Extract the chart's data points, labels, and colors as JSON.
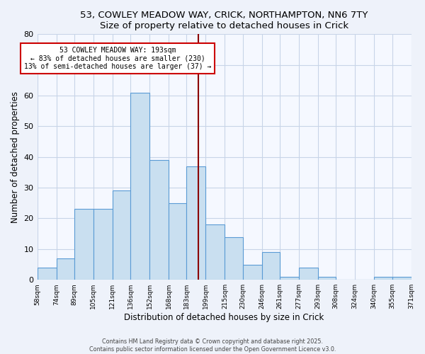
{
  "title": "53, COWLEY MEADOW WAY, CRICK, NORTHAMPTON, NN6 7TY",
  "subtitle": "Size of property relative to detached houses in Crick",
  "xlabel": "Distribution of detached houses by size in Crick",
  "ylabel": "Number of detached properties",
  "bar_edges": [
    58,
    74,
    89,
    105,
    121,
    136,
    152,
    168,
    183,
    199,
    215,
    230,
    246,
    261,
    277,
    293,
    308,
    324,
    340,
    355,
    371
  ],
  "bar_heights": [
    4,
    7,
    23,
    23,
    29,
    61,
    39,
    25,
    37,
    18,
    14,
    5,
    9,
    1,
    4,
    1,
    0,
    0,
    1,
    1
  ],
  "bar_color": "#c9dff0",
  "bar_edge_color": "#5b9bd5",
  "vline_x": 193,
  "vline_color": "#8b0000",
  "annotation_title": "53 COWLEY MEADOW WAY: 193sqm",
  "annotation_line1": "← 83% of detached houses are smaller (230)",
  "annotation_line2": "13% of semi-detached houses are larger (37) →",
  "annotation_box_edge_color": "#cc0000",
  "annotation_bg": "white",
  "ylim": [
    0,
    80
  ],
  "xlim": [
    58,
    371
  ],
  "grid_color": "#c8d4e8",
  "tick_labels": [
    "58sqm",
    "74sqm",
    "89sqm",
    "105sqm",
    "121sqm",
    "136sqm",
    "152sqm",
    "168sqm",
    "183sqm",
    "199sqm",
    "215sqm",
    "230sqm",
    "246sqm",
    "261sqm",
    "277sqm",
    "293sqm",
    "308sqm",
    "324sqm",
    "340sqm",
    "355sqm",
    "371sqm"
  ],
  "footer1": "Contains HM Land Registry data © Crown copyright and database right 2025.",
  "footer2": "Contains public sector information licensed under the Open Government Licence v3.0.",
  "bg_color": "#eef2fa",
  "plot_bg_color": "#f5f8ff"
}
